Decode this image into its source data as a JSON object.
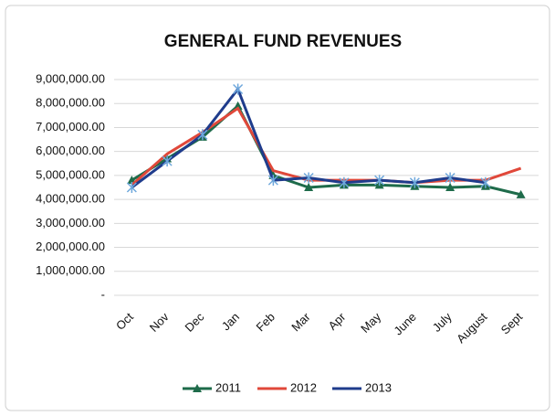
{
  "chart_data": {
    "type": "line",
    "title": "GENERAL FUND REVENUES",
    "categories": [
      "Oct",
      "Nov",
      "Dec",
      "Jan",
      "Feb",
      "Mar",
      "Apr",
      "May",
      "June",
      "July",
      "August",
      "Sept"
    ],
    "series": [
      {
        "name": "2011",
        "color": "#1e6b4a",
        "values": [
          4800000,
          5700000,
          6600000,
          7900000,
          5000000,
          4500000,
          4600000,
          4600000,
          4550000,
          4500000,
          4550000,
          4200000
        ]
      },
      {
        "name": "2012",
        "color": "#e0483a",
        "values": [
          4600000,
          5900000,
          6800000,
          7800000,
          5200000,
          4800000,
          4800000,
          4800000,
          4700000,
          4800000,
          4800000,
          5300000
        ]
      },
      {
        "name": "2013",
        "color": "#1f3c8c",
        "values": [
          4500000,
          5600000,
          6700000,
          8600000,
          4800000,
          4900000,
          4700000,
          4800000,
          4700000,
          4900000,
          4700000,
          null
        ]
      }
    ],
    "ylim": [
      0,
      9000000
    ],
    "yticks": [
      {
        "value": 0,
        "label": "-"
      },
      {
        "value": 1000000,
        "label": "1,000,000.00"
      },
      {
        "value": 2000000,
        "label": "2,000,000.00"
      },
      {
        "value": 3000000,
        "label": "3,000,000.00"
      },
      {
        "value": 4000000,
        "label": "4,000,000.00"
      },
      {
        "value": 5000000,
        "label": "5,000,000.00"
      },
      {
        "value": 6000000,
        "label": "6,000,000.00"
      },
      {
        "value": 7000000,
        "label": "7,000,000.00"
      },
      {
        "value": 8000000,
        "label": "8,000,000.00"
      },
      {
        "value": 9000000,
        "label": "9,000,000.00"
      }
    ],
    "grid": true,
    "legend": "bottom"
  }
}
